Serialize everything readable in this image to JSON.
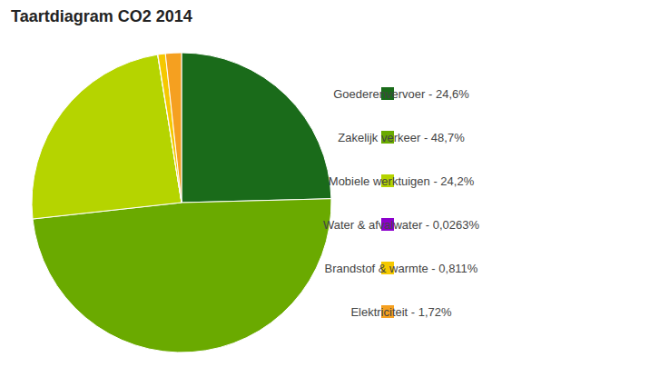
{
  "chart_data": {
    "type": "pie",
    "title": "Taartdiagram CO2 2014",
    "categories": [
      "Goederenvervoer - 24,6%",
      "Zakelijk verkeer - 48,7%",
      "Mobiele werktuigen - 24,2%",
      "Water & afvalwater - 0,0263%",
      "Brandstof & warmte - 0,811%",
      "Elektriciteit - 1,72%"
    ],
    "values": [
      24.6,
      48.7,
      24.2,
      0.0263,
      0.811,
      1.72
    ],
    "colors": [
      "#1a6b1a",
      "#6aaa00",
      "#b5d400",
      "#8b00cc",
      "#f5c800",
      "#f5a020"
    ],
    "legend": "right"
  }
}
